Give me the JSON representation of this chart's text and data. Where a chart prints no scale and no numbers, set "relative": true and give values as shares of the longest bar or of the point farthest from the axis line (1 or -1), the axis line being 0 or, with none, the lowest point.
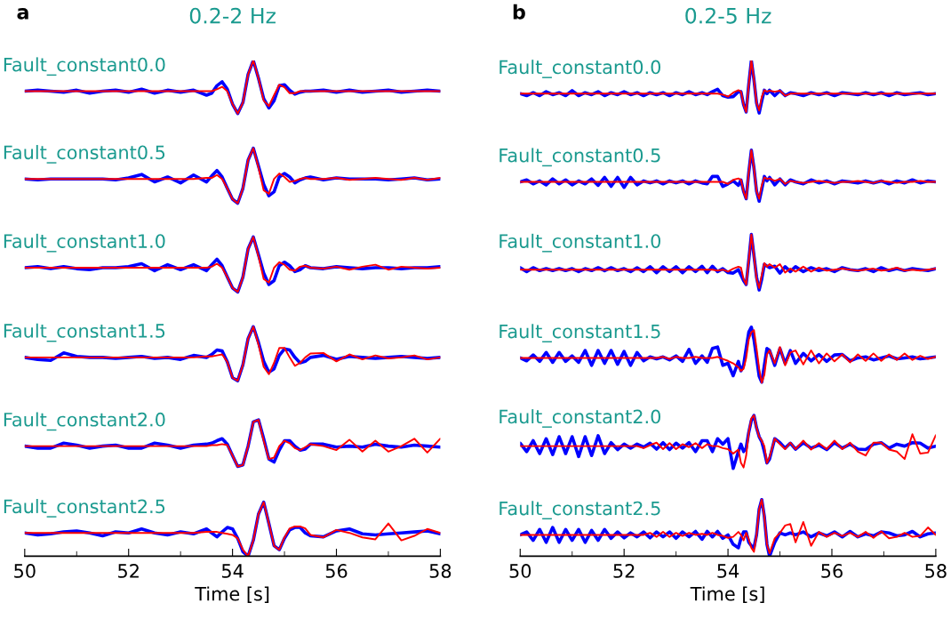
{
  "chart_data": [
    {
      "type": "line",
      "title": "0.2-2 Hz",
      "xlabel": "Time [s]",
      "relative": true,
      "grid": false,
      "xlim": [
        50,
        58
      ],
      "xticks": [
        50,
        {
          "value": 51,
          "label": null
        },
        52,
        {
          "value": 53,
          "label": null
        },
        54,
        {
          "value": 55,
          "label": null
        },
        56,
        {
          "value": 57,
          "label": null
        },
        58
      ],
      "annotations": [
        "a",
        "Fault_constant0.0",
        "Fault_constant0.5",
        "Fault_constant1.0",
        "Fault_constant1.5",
        "Fault_constant2.0",
        "Fault_constant2.5"
      ],
      "x": [
        50,
        50.25,
        50.5,
        50.75,
        51,
        51.25,
        51.5,
        51.75,
        52,
        52.25,
        52.5,
        52.75,
        53,
        53.25,
        53.5,
        53.6,
        53.7,
        53.8,
        53.9,
        54.0,
        54.1,
        54.2,
        54.3,
        54.4,
        54.5,
        54.6,
        54.7,
        54.8,
        54.9,
        55.0,
        55.1,
        55.2,
        55.3,
        55.4,
        55.5,
        55.75,
        56,
        56.25,
        56.5,
        56.75,
        57,
        57.25,
        57.5,
        57.75,
        58
      ],
      "series": [
        {
          "color": "#0000ff",
          "values": [
            0.938,
            0.94,
            0.938,
            0.936,
            0.94,
            0.934,
            0.938,
            0.94,
            0.936,
            0.942,
            0.934,
            0.94,
            0.936,
            0.94,
            0.93,
            0.934,
            0.949,
            0.957,
            0.942,
            0.912,
            0.893,
            0.915,
            0.972,
            1.0,
            0.964,
            0.923,
            0.904,
            0.919,
            0.949,
            0.951,
            0.94,
            0.932,
            0.936,
            0.938,
            0.938,
            0.94,
            0.936,
            0.94,
            0.936,
            0.938,
            0.94,
            0.936,
            0.938,
            0.94,
            0.938
          ]
        },
        {
          "color": "#ff0000",
          "values": [
            0.938,
            0.938,
            0.938,
            0.938,
            0.938,
            0.938,
            0.938,
            0.938,
            0.938,
            0.938,
            0.938,
            0.938,
            0.938,
            0.938,
            0.938,
            0.938,
            0.942,
            0.947,
            0.938,
            0.912,
            0.893,
            0.915,
            0.972,
            1.0,
            0.964,
            0.919,
            0.908,
            0.93,
            0.951,
            0.946,
            0.934,
            0.934,
            0.938,
            0.938,
            0.938,
            0.938,
            0.938,
            0.938,
            0.938,
            0.938,
            0.938,
            0.938,
            0.938,
            0.938,
            0.938
          ]
        },
        {
          "color": "#0000ff",
          "values": [
            0.761,
            0.759,
            0.761,
            0.761,
            0.761,
            0.761,
            0.761,
            0.759,
            0.763,
            0.77,
            0.755,
            0.765,
            0.753,
            0.769,
            0.755,
            0.767,
            0.778,
            0.765,
            0.742,
            0.72,
            0.712,
            0.742,
            0.799,
            0.823,
            0.787,
            0.75,
            0.727,
            0.735,
            0.765,
            0.772,
            0.765,
            0.753,
            0.759,
            0.763,
            0.765,
            0.759,
            0.763,
            0.761,
            0.761,
            0.761,
            0.759,
            0.761,
            0.763,
            0.759,
            0.761
          ]
        },
        {
          "color": "#ff0000",
          "values": [
            0.761,
            0.761,
            0.761,
            0.761,
            0.761,
            0.761,
            0.761,
            0.761,
            0.761,
            0.761,
            0.761,
            0.761,
            0.761,
            0.761,
            0.763,
            0.763,
            0.769,
            0.761,
            0.742,
            0.72,
            0.712,
            0.742,
            0.799,
            0.823,
            0.784,
            0.738,
            0.731,
            0.761,
            0.772,
            0.765,
            0.755,
            0.757,
            0.761,
            0.763,
            0.761,
            0.761,
            0.763,
            0.759,
            0.761,
            0.763,
            0.761,
            0.759,
            0.763,
            0.759,
            0.763
          ]
        },
        {
          "color": "#0000ff",
          "values": [
            0.582,
            0.584,
            0.58,
            0.584,
            0.58,
            0.578,
            0.582,
            0.582,
            0.584,
            0.59,
            0.576,
            0.588,
            0.578,
            0.588,
            0.576,
            0.588,
            0.599,
            0.586,
            0.563,
            0.541,
            0.533,
            0.563,
            0.62,
            0.644,
            0.608,
            0.571,
            0.548,
            0.556,
            0.586,
            0.593,
            0.586,
            0.574,
            0.578,
            0.586,
            0.582,
            0.58,
            0.584,
            0.582,
            0.58,
            0.582,
            0.582,
            0.58,
            0.582,
            0.582,
            0.584
          ]
        },
        {
          "color": "#ff0000",
          "values": [
            0.582,
            0.582,
            0.582,
            0.582,
            0.582,
            0.582,
            0.582,
            0.582,
            0.582,
            0.582,
            0.582,
            0.582,
            0.582,
            0.582,
            0.582,
            0.584,
            0.59,
            0.582,
            0.563,
            0.541,
            0.533,
            0.563,
            0.62,
            0.644,
            0.605,
            0.559,
            0.552,
            0.582,
            0.593,
            0.588,
            0.578,
            0.576,
            0.584,
            0.586,
            0.582,
            0.58,
            0.584,
            0.578,
            0.584,
            0.588,
            0.578,
            0.584,
            0.582,
            0.58,
            0.582
          ]
        },
        {
          "color": "#0000ff",
          "values": [
            0.401,
            0.397,
            0.395,
            0.41,
            0.403,
            0.401,
            0.401,
            0.399,
            0.401,
            0.403,
            0.399,
            0.401,
            0.397,
            0.405,
            0.401,
            0.407,
            0.416,
            0.414,
            0.392,
            0.36,
            0.354,
            0.386,
            0.439,
            0.463,
            0.431,
            0.393,
            0.371,
            0.378,
            0.405,
            0.418,
            0.416,
            0.401,
            0.39,
            0.393,
            0.401,
            0.405,
            0.397,
            0.403,
            0.401,
            0.399,
            0.401,
            0.403,
            0.401,
            0.399,
            0.401
          ]
        },
        {
          "color": "#ff0000",
          "values": [
            0.401,
            0.401,
            0.401,
            0.401,
            0.401,
            0.401,
            0.401,
            0.401,
            0.401,
            0.401,
            0.401,
            0.401,
            0.401,
            0.401,
            0.403,
            0.403,
            0.405,
            0.407,
            0.392,
            0.36,
            0.354,
            0.386,
            0.439,
            0.463,
            0.427,
            0.382,
            0.367,
            0.39,
            0.42,
            0.42,
            0.401,
            0.384,
            0.39,
            0.401,
            0.409,
            0.41,
            0.393,
            0.407,
            0.397,
            0.405,
            0.399,
            0.401,
            0.405,
            0.397,
            0.401
          ]
        },
        {
          "color": "#0000ff",
          "values": [
            0.222,
            0.218,
            0.218,
            0.228,
            0.224,
            0.218,
            0.222,
            0.224,
            0.218,
            0.218,
            0.228,
            0.224,
            0.218,
            0.224,
            0.226,
            0.228,
            0.233,
            0.237,
            0.226,
            0.203,
            0.181,
            0.184,
            0.222,
            0.271,
            0.275,
            0.237,
            0.196,
            0.19,
            0.214,
            0.233,
            0.233,
            0.222,
            0.214,
            0.216,
            0.226,
            0.226,
            0.22,
            0.222,
            0.22,
            0.226,
            0.222,
            0.22,
            0.224,
            0.222,
            0.22
          ]
        },
        {
          "color": "#ff0000",
          "values": [
            0.222,
            0.222,
            0.222,
            0.222,
            0.222,
            0.222,
            0.222,
            0.222,
            0.222,
            0.222,
            0.222,
            0.222,
            0.222,
            0.222,
            0.222,
            0.224,
            0.224,
            0.226,
            0.224,
            0.203,
            0.181,
            0.184,
            0.222,
            0.271,
            0.275,
            0.233,
            0.196,
            0.199,
            0.222,
            0.233,
            0.228,
            0.218,
            0.214,
            0.22,
            0.226,
            0.222,
            0.214,
            0.235,
            0.211,
            0.233,
            0.211,
            0.222,
            0.237,
            0.209,
            0.237
          ]
        },
        {
          "color": "#0000ff",
          "values": [
            0.047,
            0.043,
            0.045,
            0.049,
            0.051,
            0.047,
            0.041,
            0.049,
            0.047,
            0.055,
            0.047,
            0.043,
            0.049,
            0.045,
            0.055,
            0.047,
            0.039,
            0.049,
            0.058,
            0.055,
            0.036,
            0.009,
            0.0,
            0.032,
            0.085,
            0.109,
            0.066,
            0.021,
            0.013,
            0.036,
            0.053,
            0.058,
            0.058,
            0.047,
            0.041,
            0.039,
            0.051,
            0.055,
            0.045,
            0.043,
            0.045,
            0.047,
            0.049,
            0.051,
            0.045
          ]
        },
        {
          "color": "#ff0000",
          "values": [
            0.047,
            0.047,
            0.047,
            0.047,
            0.047,
            0.047,
            0.047,
            0.047,
            0.047,
            0.047,
            0.047,
            0.047,
            0.047,
            0.047,
            0.049,
            0.049,
            0.049,
            0.047,
            0.045,
            0.043,
            0.036,
            0.013,
            0.0,
            0.032,
            0.085,
            0.109,
            0.066,
            0.021,
            0.013,
            0.038,
            0.056,
            0.06,
            0.06,
            0.056,
            0.043,
            0.038,
            0.053,
            0.047,
            0.038,
            0.034,
            0.066,
            0.032,
            0.041,
            0.055,
            0.047
          ]
        }
      ]
    },
    {
      "type": "line",
      "title": "0.2-5 Hz",
      "xlabel": "Time [s]",
      "relative": true,
      "grid": false,
      "xlim": [
        50,
        58
      ],
      "xticks": [
        50,
        {
          "value": 51,
          "label": null
        },
        52,
        {
          "value": 53,
          "label": null
        },
        54,
        {
          "value": 55,
          "label": null
        },
        56,
        {
          "value": 57,
          "label": null
        },
        58
      ],
      "annotations": [
        "b",
        "Fault_constant0.0",
        "Fault_constant0.5",
        "Fault_constant1.0",
        "Fault_constant1.5",
        "Fault_constant2.0",
        "Fault_constant2.5"
      ],
      "x": [
        50,
        50.125,
        50.25,
        50.375,
        50.5,
        50.625,
        50.75,
        50.875,
        51,
        51.125,
        51.25,
        51.375,
        51.5,
        51.625,
        51.75,
        51.875,
        52,
        52.125,
        52.25,
        52.375,
        52.5,
        52.625,
        52.75,
        52.875,
        53,
        53.125,
        53.25,
        53.375,
        53.5,
        53.6,
        53.7,
        53.8,
        53.9,
        54.0,
        54.1,
        54.2,
        54.25,
        54.3,
        54.35,
        54.4,
        54.45,
        54.5,
        54.55,
        54.6,
        54.65,
        54.7,
        54.75,
        54.8,
        54.9,
        55.0,
        55.1,
        55.2,
        55.3,
        55.45,
        55.6,
        55.75,
        55.9,
        56.05,
        56.2,
        56.35,
        56.5,
        56.65,
        56.8,
        56.95,
        57.1,
        57.25,
        57.4,
        57.55,
        57.7,
        57.85,
        58
      ],
      "series": [
        {
          "color": "#0000ff",
          "values": [
            0.933,
            0.929,
            0.935,
            0.929,
            0.937,
            0.931,
            0.935,
            0.929,
            0.939,
            0.929,
            0.935,
            0.931,
            0.937,
            0.929,
            0.935,
            0.931,
            0.937,
            0.931,
            0.935,
            0.929,
            0.935,
            0.931,
            0.935,
            0.929,
            0.935,
            0.931,
            0.937,
            0.931,
            0.935,
            0.931,
            0.937,
            0.942,
            0.929,
            0.926,
            0.927,
            0.937,
            0.937,
            0.911,
            0.896,
            0.952,
            1.0,
            0.961,
            0.914,
            0.894,
            0.918,
            0.94,
            0.933,
            0.94,
            0.929,
            0.939,
            0.929,
            0.935,
            0.933,
            0.929,
            0.935,
            0.931,
            0.935,
            0.929,
            0.935,
            0.933,
            0.931,
            0.935,
            0.931,
            0.935,
            0.929,
            0.935,
            0.931,
            0.933,
            0.935,
            0.931,
            0.933
          ]
        },
        {
          "color": "#ff0000",
          "values": [
            0.933,
            0.933,
            0.933,
            0.933,
            0.933,
            0.933,
            0.933,
            0.933,
            0.933,
            0.933,
            0.933,
            0.933,
            0.933,
            0.933,
            0.933,
            0.933,
            0.933,
            0.933,
            0.933,
            0.933,
            0.933,
            0.933,
            0.933,
            0.933,
            0.933,
            0.933,
            0.933,
            0.933,
            0.933,
            0.933,
            0.933,
            0.933,
            0.931,
            0.927,
            0.935,
            0.94,
            0.937,
            0.911,
            0.896,
            0.952,
            1.0,
            0.961,
            0.914,
            0.899,
            0.926,
            0.94,
            0.937,
            0.939,
            0.937,
            0.939,
            0.929,
            0.933,
            0.933,
            0.933,
            0.933,
            0.933,
            0.933,
            0.933,
            0.933,
            0.933,
            0.933,
            0.933,
            0.933,
            0.933,
            0.933,
            0.933,
            0.933,
            0.933,
            0.933,
            0.933,
            0.933
          ]
        },
        {
          "color": "#0000ff",
          "values": [
            0.755,
            0.759,
            0.751,
            0.757,
            0.749,
            0.761,
            0.751,
            0.759,
            0.749,
            0.757,
            0.751,
            0.761,
            0.748,
            0.764,
            0.746,
            0.764,
            0.744,
            0.764,
            0.749,
            0.757,
            0.753,
            0.757,
            0.751,
            0.757,
            0.753,
            0.757,
            0.751,
            0.757,
            0.753,
            0.751,
            0.766,
            0.766,
            0.746,
            0.751,
            0.757,
            0.748,
            0.759,
            0.736,
            0.721,
            0.774,
            0.819,
            0.783,
            0.736,
            0.716,
            0.74,
            0.766,
            0.757,
            0.764,
            0.749,
            0.761,
            0.749,
            0.759,
            0.755,
            0.751,
            0.759,
            0.753,
            0.757,
            0.751,
            0.757,
            0.755,
            0.753,
            0.757,
            0.753,
            0.757,
            0.751,
            0.757,
            0.753,
            0.759,
            0.753,
            0.757,
            0.755
          ]
        },
        {
          "color": "#ff0000",
          "values": [
            0.755,
            0.755,
            0.755,
            0.755,
            0.755,
            0.755,
            0.755,
            0.755,
            0.755,
            0.755,
            0.755,
            0.755,
            0.755,
            0.755,
            0.755,
            0.755,
            0.755,
            0.755,
            0.755,
            0.755,
            0.755,
            0.755,
            0.755,
            0.755,
            0.755,
            0.755,
            0.755,
            0.755,
            0.755,
            0.755,
            0.755,
            0.755,
            0.755,
            0.751,
            0.759,
            0.762,
            0.759,
            0.736,
            0.721,
            0.774,
            0.819,
            0.783,
            0.736,
            0.721,
            0.748,
            0.764,
            0.761,
            0.762,
            0.757,
            0.761,
            0.751,
            0.757,
            0.755,
            0.753,
            0.755,
            0.757,
            0.755,
            0.753,
            0.755,
            0.755,
            0.757,
            0.755,
            0.753,
            0.757,
            0.755,
            0.753,
            0.755,
            0.755,
            0.757,
            0.755,
            0.755
          ]
        },
        {
          "color": "#0000ff",
          "values": [
            0.582,
            0.574,
            0.582,
            0.576,
            0.58,
            0.576,
            0.58,
            0.576,
            0.58,
            0.574,
            0.58,
            0.576,
            0.582,
            0.576,
            0.582,
            0.576,
            0.58,
            0.574,
            0.582,
            0.574,
            0.584,
            0.572,
            0.584,
            0.574,
            0.584,
            0.572,
            0.584,
            0.574,
            0.585,
            0.572,
            0.585,
            0.574,
            0.58,
            0.572,
            0.571,
            0.578,
            0.567,
            0.556,
            0.548,
            0.597,
            0.649,
            0.606,
            0.563,
            0.537,
            0.559,
            0.589,
            0.585,
            0.582,
            0.585,
            0.571,
            0.584,
            0.574,
            0.584,
            0.574,
            0.582,
            0.576,
            0.58,
            0.574,
            0.582,
            0.578,
            0.576,
            0.58,
            0.574,
            0.582,
            0.576,
            0.58,
            0.576,
            0.58,
            0.578,
            0.576,
            0.58
          ]
        },
        {
          "color": "#ff0000",
          "values": [
            0.578,
            0.578,
            0.578,
            0.578,
            0.578,
            0.578,
            0.578,
            0.578,
            0.578,
            0.578,
            0.578,
            0.578,
            0.578,
            0.578,
            0.578,
            0.578,
            0.578,
            0.578,
            0.578,
            0.578,
            0.578,
            0.578,
            0.578,
            0.578,
            0.578,
            0.578,
            0.578,
            0.578,
            0.578,
            0.578,
            0.578,
            0.576,
            0.578,
            0.574,
            0.58,
            0.584,
            0.582,
            0.559,
            0.548,
            0.597,
            0.649,
            0.606,
            0.559,
            0.541,
            0.567,
            0.591,
            0.584,
            0.589,
            0.582,
            0.589,
            0.572,
            0.58,
            0.574,
            0.584,
            0.574,
            0.582,
            0.576,
            0.578,
            0.58,
            0.578,
            0.576,
            0.578,
            0.58,
            0.576,
            0.578,
            0.582,
            0.576,
            0.578,
            0.576,
            0.578,
            0.58
          ]
        },
        {
          "color": "#0000ff",
          "values": [
            0.4,
            0.394,
            0.406,
            0.393,
            0.411,
            0.391,
            0.411,
            0.393,
            0.404,
            0.391,
            0.415,
            0.385,
            0.415,
            0.389,
            0.415,
            0.387,
            0.413,
            0.385,
            0.411,
            0.394,
            0.402,
            0.398,
            0.402,
            0.396,
            0.404,
            0.393,
            0.417,
            0.389,
            0.404,
            0.391,
            0.419,
            0.422,
            0.385,
            0.389,
            0.364,
            0.393,
            0.374,
            0.385,
            0.419,
            0.452,
            0.462,
            0.437,
            0.4,
            0.363,
            0.351,
            0.385,
            0.419,
            0.415,
            0.385,
            0.419,
            0.389,
            0.415,
            0.389,
            0.409,
            0.394,
            0.407,
            0.393,
            0.406,
            0.407,
            0.394,
            0.4,
            0.402,
            0.396,
            0.4,
            0.404,
            0.398,
            0.4,
            0.402,
            0.398,
            0.4,
            0.402
          ]
        },
        {
          "color": "#ff0000",
          "values": [
            0.4,
            0.4,
            0.4,
            0.4,
            0.4,
            0.4,
            0.4,
            0.4,
            0.4,
            0.4,
            0.4,
            0.4,
            0.4,
            0.4,
            0.4,
            0.4,
            0.4,
            0.4,
            0.4,
            0.4,
            0.4,
            0.4,
            0.402,
            0.398,
            0.402,
            0.4,
            0.4,
            0.402,
            0.4,
            0.4,
            0.4,
            0.402,
            0.398,
            0.394,
            0.389,
            0.381,
            0.374,
            0.378,
            0.4,
            0.437,
            0.452,
            0.456,
            0.419,
            0.378,
            0.35,
            0.366,
            0.407,
            0.415,
            0.389,
            0.422,
            0.385,
            0.411,
            0.415,
            0.387,
            0.415,
            0.389,
            0.409,
            0.393,
            0.407,
            0.391,
            0.407,
            0.394,
            0.409,
            0.394,
            0.407,
            0.396,
            0.409,
            0.396,
            0.404,
            0.398,
            0.402
          ]
        },
        {
          "color": "#0000ff",
          "values": [
            0.228,
            0.211,
            0.233,
            0.207,
            0.237,
            0.205,
            0.241,
            0.207,
            0.241,
            0.201,
            0.241,
            0.203,
            0.243,
            0.207,
            0.229,
            0.215,
            0.226,
            0.218,
            0.226,
            0.22,
            0.228,
            0.216,
            0.229,
            0.215,
            0.228,
            0.218,
            0.229,
            0.211,
            0.233,
            0.233,
            0.211,
            0.237,
            0.226,
            0.237,
            0.177,
            0.211,
            0.226,
            0.211,
            0.218,
            0.25,
            0.274,
            0.284,
            0.259,
            0.241,
            0.231,
            0.211,
            0.188,
            0.196,
            0.237,
            0.229,
            0.218,
            0.228,
            0.216,
            0.229,
            0.218,
            0.224,
            0.215,
            0.229,
            0.218,
            0.226,
            0.216,
            0.215,
            0.226,
            0.229,
            0.218,
            0.226,
            0.222,
            0.229,
            0.228,
            0.218,
            0.222
          ]
        },
        {
          "color": "#ff0000",
          "values": [
            0.222,
            0.222,
            0.222,
            0.222,
            0.222,
            0.222,
            0.222,
            0.222,
            0.222,
            0.222,
            0.222,
            0.222,
            0.222,
            0.222,
            0.222,
            0.222,
            0.222,
            0.222,
            0.222,
            0.218,
            0.224,
            0.229,
            0.216,
            0.228,
            0.216,
            0.226,
            0.22,
            0.228,
            0.218,
            0.226,
            0.222,
            0.222,
            0.218,
            0.216,
            0.207,
            0.215,
            0.188,
            0.179,
            0.203,
            0.25,
            0.278,
            0.284,
            0.259,
            0.241,
            0.233,
            0.222,
            0.188,
            0.2,
            0.237,
            0.226,
            0.216,
            0.229,
            0.216,
            0.233,
            0.215,
            0.228,
            0.216,
            0.233,
            0.216,
            0.229,
            0.211,
            0.203,
            0.229,
            0.229,
            0.215,
            0.211,
            0.196,
            0.246,
            0.207,
            0.209,
            0.244
          ]
        },
        {
          "color": "#0000ff",
          "values": [
            0.043,
            0.049,
            0.032,
            0.054,
            0.028,
            0.058,
            0.028,
            0.054,
            0.032,
            0.054,
            0.028,
            0.052,
            0.032,
            0.054,
            0.036,
            0.049,
            0.037,
            0.047,
            0.039,
            0.049,
            0.037,
            0.049,
            0.039,
            0.049,
            0.036,
            0.049,
            0.039,
            0.05,
            0.034,
            0.05,
            0.039,
            0.05,
            0.036,
            0.043,
            0.024,
            0.017,
            0.036,
            0.049,
            0.049,
            0.028,
            0.021,
            0.017,
            0.043,
            0.095,
            0.114,
            0.08,
            0.024,
            0.0,
            0.028,
            0.047,
            0.043,
            0.047,
            0.043,
            0.049,
            0.039,
            0.047,
            0.041,
            0.049,
            0.039,
            0.05,
            0.039,
            0.045,
            0.041,
            0.049,
            0.047,
            0.041,
            0.043,
            0.05,
            0.039,
            0.045,
            0.047
          ]
        },
        {
          "color": "#ff0000",
          "values": [
            0.043,
            0.043,
            0.043,
            0.043,
            0.043,
            0.043,
            0.043,
            0.043,
            0.043,
            0.043,
            0.043,
            0.043,
            0.043,
            0.043,
            0.043,
            0.043,
            0.043,
            0.043,
            0.043,
            0.043,
            0.047,
            0.039,
            0.049,
            0.039,
            0.047,
            0.041,
            0.047,
            0.043,
            0.045,
            0.043,
            0.047,
            0.043,
            0.041,
            0.037,
            0.039,
            0.049,
            0.043,
            0.032,
            0.047,
            0.034,
            0.017,
            0.009,
            0.043,
            0.095,
            0.114,
            0.08,
            0.024,
            0.006,
            0.036,
            0.047,
            0.062,
            0.065,
            0.028,
            0.069,
            0.021,
            0.049,
            0.039,
            0.047,
            0.041,
            0.047,
            0.039,
            0.049,
            0.037,
            0.05,
            0.036,
            0.039,
            0.047,
            0.039,
            0.041,
            0.058,
            0.043
          ]
        }
      ]
    }
  ]
}
